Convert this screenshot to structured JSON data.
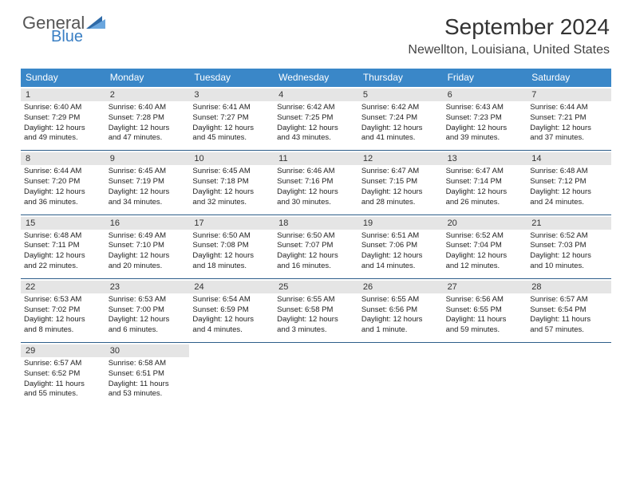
{
  "logo": {
    "general": "General",
    "blue": "Blue"
  },
  "title": "September 2024",
  "location": "Newellton, Louisiana, United States",
  "colors": {
    "header_bg": "#3a87c8",
    "daynum_bg": "#e5e5e5",
    "week_border": "#2e5e8a",
    "logo_accent": "#3a7fc4"
  },
  "day_headers": [
    "Sunday",
    "Monday",
    "Tuesday",
    "Wednesday",
    "Thursday",
    "Friday",
    "Saturday"
  ],
  "days": [
    {
      "n": "1",
      "sr": "Sunrise: 6:40 AM",
      "ss": "Sunset: 7:29 PM",
      "d1": "Daylight: 12 hours",
      "d2": "and 49 minutes."
    },
    {
      "n": "2",
      "sr": "Sunrise: 6:40 AM",
      "ss": "Sunset: 7:28 PM",
      "d1": "Daylight: 12 hours",
      "d2": "and 47 minutes."
    },
    {
      "n": "3",
      "sr": "Sunrise: 6:41 AM",
      "ss": "Sunset: 7:27 PM",
      "d1": "Daylight: 12 hours",
      "d2": "and 45 minutes."
    },
    {
      "n": "4",
      "sr": "Sunrise: 6:42 AM",
      "ss": "Sunset: 7:25 PM",
      "d1": "Daylight: 12 hours",
      "d2": "and 43 minutes."
    },
    {
      "n": "5",
      "sr": "Sunrise: 6:42 AM",
      "ss": "Sunset: 7:24 PM",
      "d1": "Daylight: 12 hours",
      "d2": "and 41 minutes."
    },
    {
      "n": "6",
      "sr": "Sunrise: 6:43 AM",
      "ss": "Sunset: 7:23 PM",
      "d1": "Daylight: 12 hours",
      "d2": "and 39 minutes."
    },
    {
      "n": "7",
      "sr": "Sunrise: 6:44 AM",
      "ss": "Sunset: 7:21 PM",
      "d1": "Daylight: 12 hours",
      "d2": "and 37 minutes."
    },
    {
      "n": "8",
      "sr": "Sunrise: 6:44 AM",
      "ss": "Sunset: 7:20 PM",
      "d1": "Daylight: 12 hours",
      "d2": "and 36 minutes."
    },
    {
      "n": "9",
      "sr": "Sunrise: 6:45 AM",
      "ss": "Sunset: 7:19 PM",
      "d1": "Daylight: 12 hours",
      "d2": "and 34 minutes."
    },
    {
      "n": "10",
      "sr": "Sunrise: 6:45 AM",
      "ss": "Sunset: 7:18 PM",
      "d1": "Daylight: 12 hours",
      "d2": "and 32 minutes."
    },
    {
      "n": "11",
      "sr": "Sunrise: 6:46 AM",
      "ss": "Sunset: 7:16 PM",
      "d1": "Daylight: 12 hours",
      "d2": "and 30 minutes."
    },
    {
      "n": "12",
      "sr": "Sunrise: 6:47 AM",
      "ss": "Sunset: 7:15 PM",
      "d1": "Daylight: 12 hours",
      "d2": "and 28 minutes."
    },
    {
      "n": "13",
      "sr": "Sunrise: 6:47 AM",
      "ss": "Sunset: 7:14 PM",
      "d1": "Daylight: 12 hours",
      "d2": "and 26 minutes."
    },
    {
      "n": "14",
      "sr": "Sunrise: 6:48 AM",
      "ss": "Sunset: 7:12 PM",
      "d1": "Daylight: 12 hours",
      "d2": "and 24 minutes."
    },
    {
      "n": "15",
      "sr": "Sunrise: 6:48 AM",
      "ss": "Sunset: 7:11 PM",
      "d1": "Daylight: 12 hours",
      "d2": "and 22 minutes."
    },
    {
      "n": "16",
      "sr": "Sunrise: 6:49 AM",
      "ss": "Sunset: 7:10 PM",
      "d1": "Daylight: 12 hours",
      "d2": "and 20 minutes."
    },
    {
      "n": "17",
      "sr": "Sunrise: 6:50 AM",
      "ss": "Sunset: 7:08 PM",
      "d1": "Daylight: 12 hours",
      "d2": "and 18 minutes."
    },
    {
      "n": "18",
      "sr": "Sunrise: 6:50 AM",
      "ss": "Sunset: 7:07 PM",
      "d1": "Daylight: 12 hours",
      "d2": "and 16 minutes."
    },
    {
      "n": "19",
      "sr": "Sunrise: 6:51 AM",
      "ss": "Sunset: 7:06 PM",
      "d1": "Daylight: 12 hours",
      "d2": "and 14 minutes."
    },
    {
      "n": "20",
      "sr": "Sunrise: 6:52 AM",
      "ss": "Sunset: 7:04 PM",
      "d1": "Daylight: 12 hours",
      "d2": "and 12 minutes."
    },
    {
      "n": "21",
      "sr": "Sunrise: 6:52 AM",
      "ss": "Sunset: 7:03 PM",
      "d1": "Daylight: 12 hours",
      "d2": "and 10 minutes."
    },
    {
      "n": "22",
      "sr": "Sunrise: 6:53 AM",
      "ss": "Sunset: 7:02 PM",
      "d1": "Daylight: 12 hours",
      "d2": "and 8 minutes."
    },
    {
      "n": "23",
      "sr": "Sunrise: 6:53 AM",
      "ss": "Sunset: 7:00 PM",
      "d1": "Daylight: 12 hours",
      "d2": "and 6 minutes."
    },
    {
      "n": "24",
      "sr": "Sunrise: 6:54 AM",
      "ss": "Sunset: 6:59 PM",
      "d1": "Daylight: 12 hours",
      "d2": "and 4 minutes."
    },
    {
      "n": "25",
      "sr": "Sunrise: 6:55 AM",
      "ss": "Sunset: 6:58 PM",
      "d1": "Daylight: 12 hours",
      "d2": "and 3 minutes."
    },
    {
      "n": "26",
      "sr": "Sunrise: 6:55 AM",
      "ss": "Sunset: 6:56 PM",
      "d1": "Daylight: 12 hours",
      "d2": "and 1 minute."
    },
    {
      "n": "27",
      "sr": "Sunrise: 6:56 AM",
      "ss": "Sunset: 6:55 PM",
      "d1": "Daylight: 11 hours",
      "d2": "and 59 minutes."
    },
    {
      "n": "28",
      "sr": "Sunrise: 6:57 AM",
      "ss": "Sunset: 6:54 PM",
      "d1": "Daylight: 11 hours",
      "d2": "and 57 minutes."
    },
    {
      "n": "29",
      "sr": "Sunrise: 6:57 AM",
      "ss": "Sunset: 6:52 PM",
      "d1": "Daylight: 11 hours",
      "d2": "and 55 minutes."
    },
    {
      "n": "30",
      "sr": "Sunrise: 6:58 AM",
      "ss": "Sunset: 6:51 PM",
      "d1": "Daylight: 11 hours",
      "d2": "and 53 minutes."
    }
  ]
}
